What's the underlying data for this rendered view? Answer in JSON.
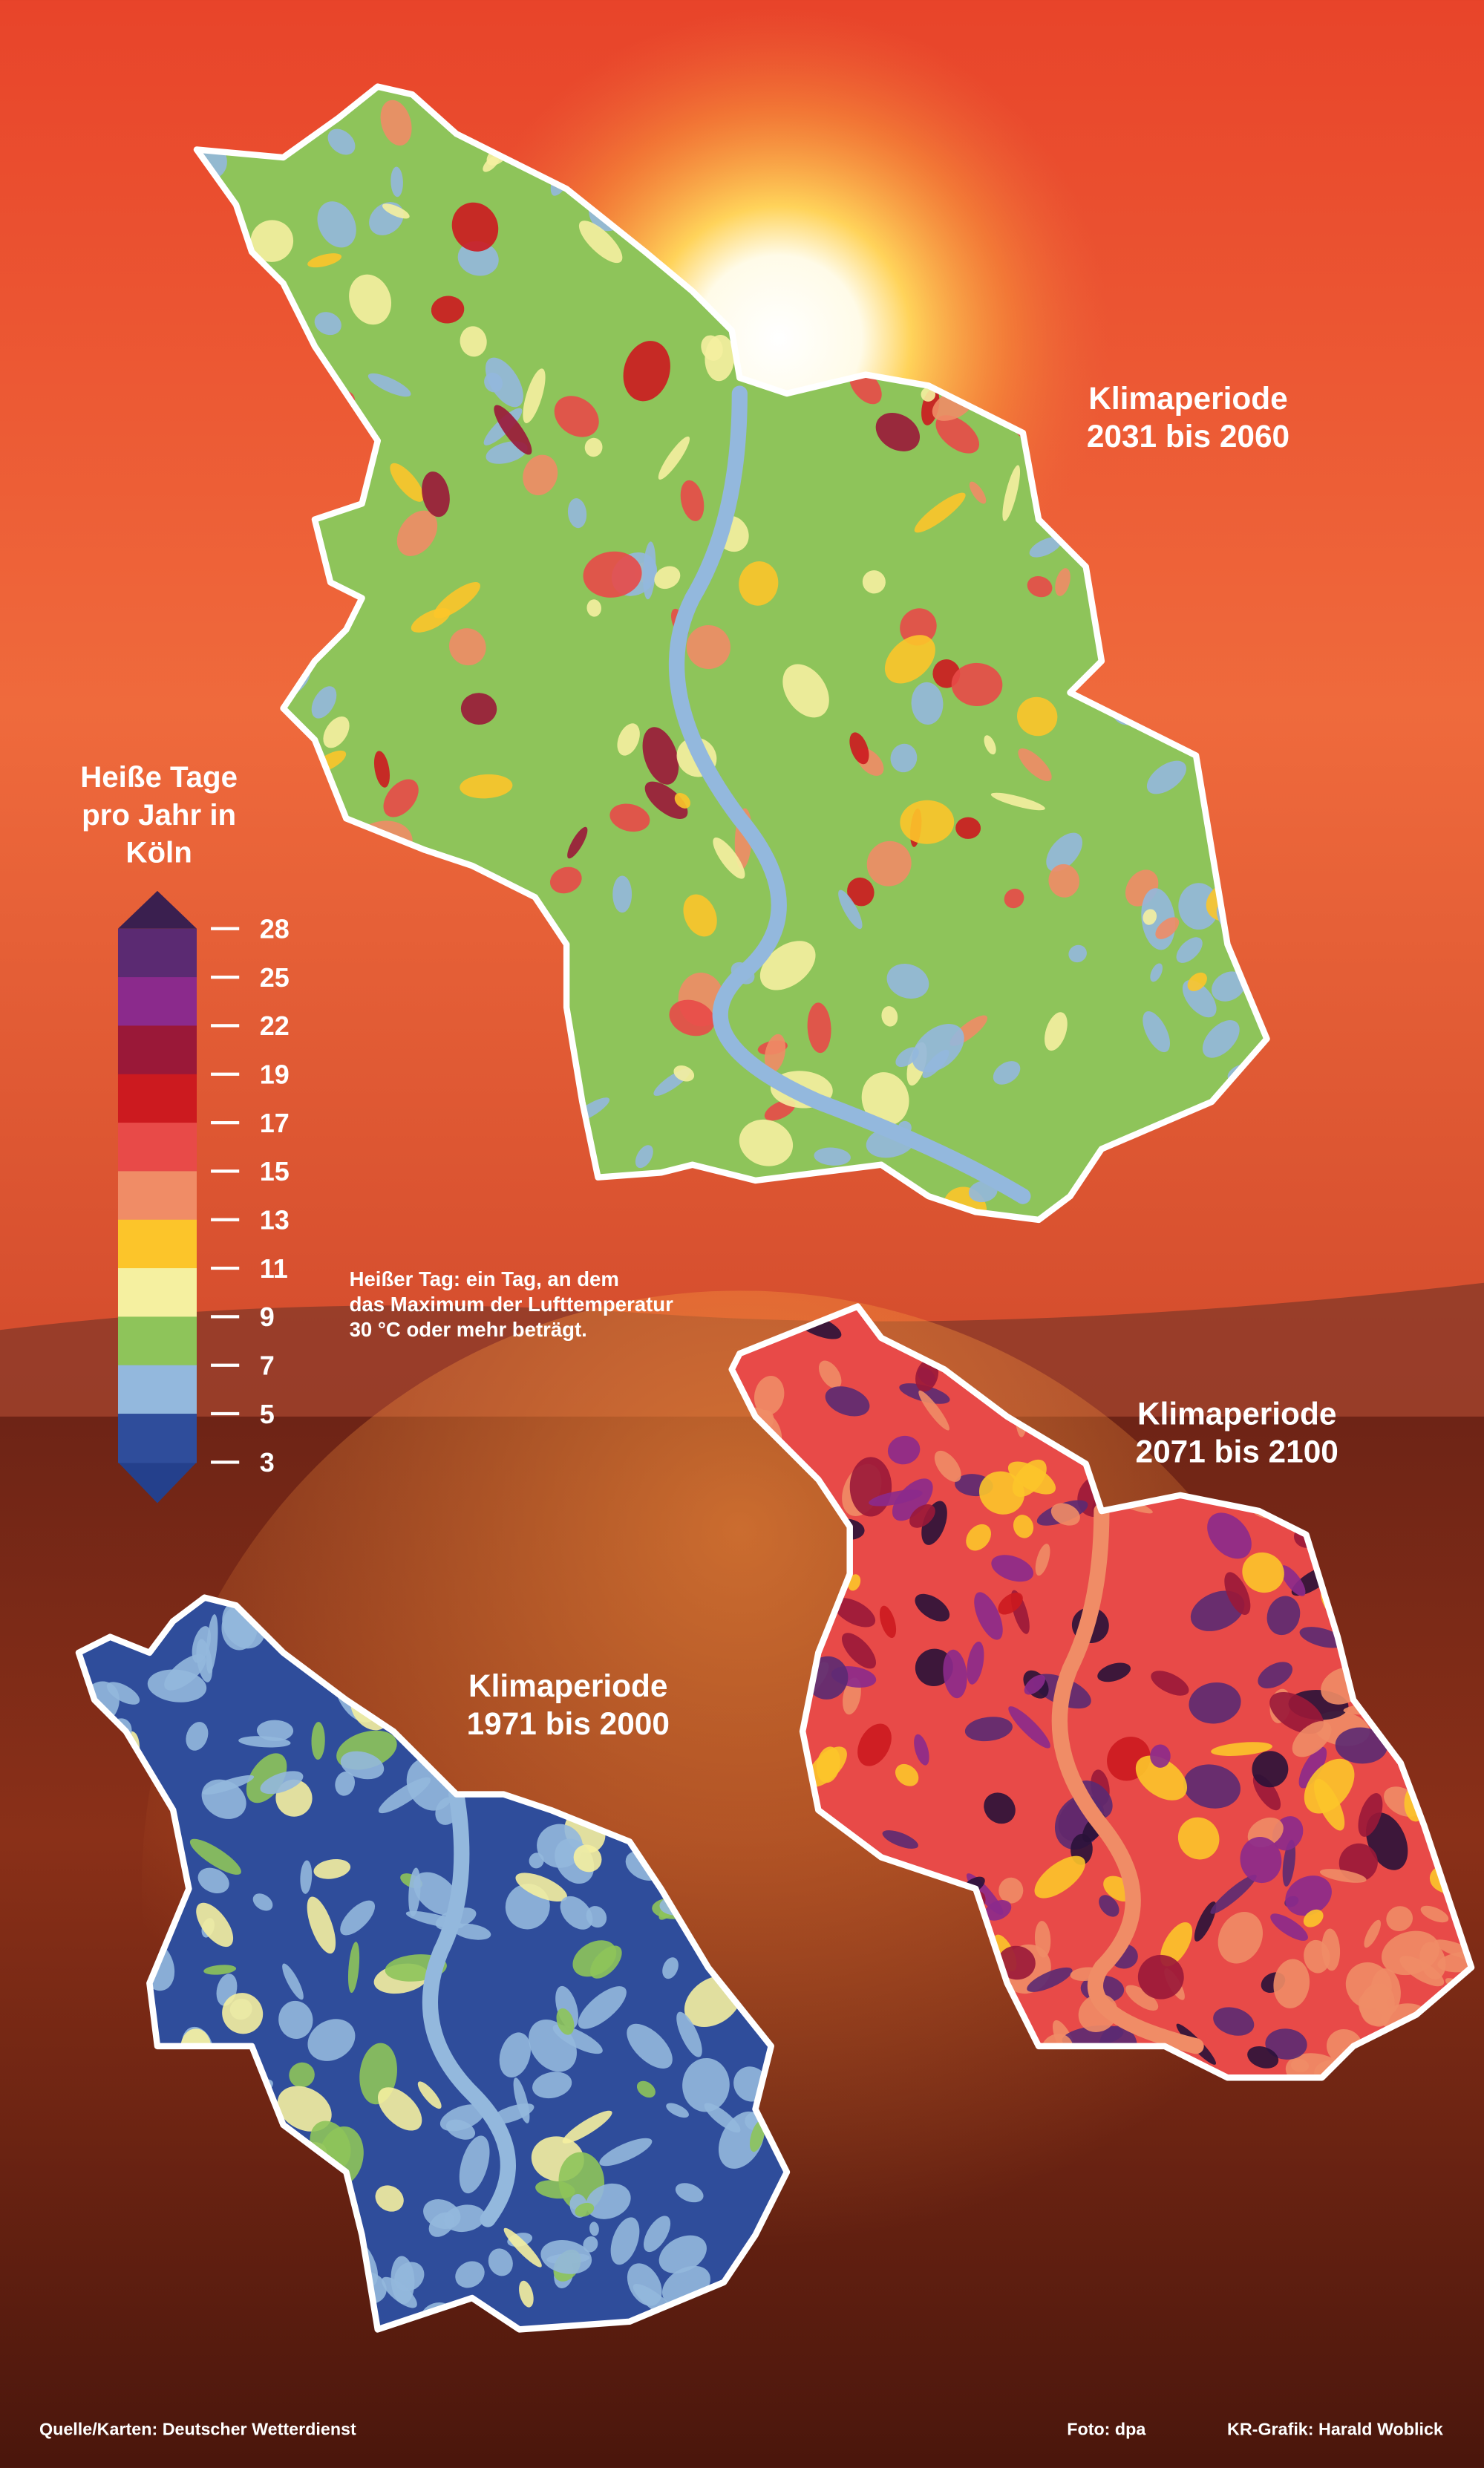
{
  "legend": {
    "title": [
      "Heiße Tage",
      "pro Jahr in",
      "Köln"
    ],
    "ticks": [
      28,
      25,
      22,
      19,
      17,
      15,
      13,
      11,
      9,
      7,
      5,
      3
    ],
    "colors": [
      "#5b2a72",
      "#8b2a8c",
      "#9a1838",
      "#cc1a1f",
      "#e84a48",
      "#f08c66",
      "#fcc52a",
      "#f5f0a0",
      "#8ec45a",
      "#93b8dd",
      "#2f4d9b"
    ]
  },
  "definition": [
    "Heißer Tag: ein Tag, an dem",
    "das Maximum der Lufttemperatur",
    "30 °C oder mehr beträgt."
  ],
  "maps": [
    {
      "label": [
        "Klimaperiode",
        "2031 bis 2060"
      ]
    },
    {
      "label": [
        "Klimaperiode",
        "2071 bis 2100"
      ]
    },
    {
      "label": [
        "Klimaperiode",
        "1971 bis 2000"
      ]
    }
  ],
  "footer": {
    "source": "Quelle/Karten: Deutscher Wetterdienst",
    "photo": "Foto: dpa",
    "credit": "KR-Grafik: Harald Woblick"
  }
}
